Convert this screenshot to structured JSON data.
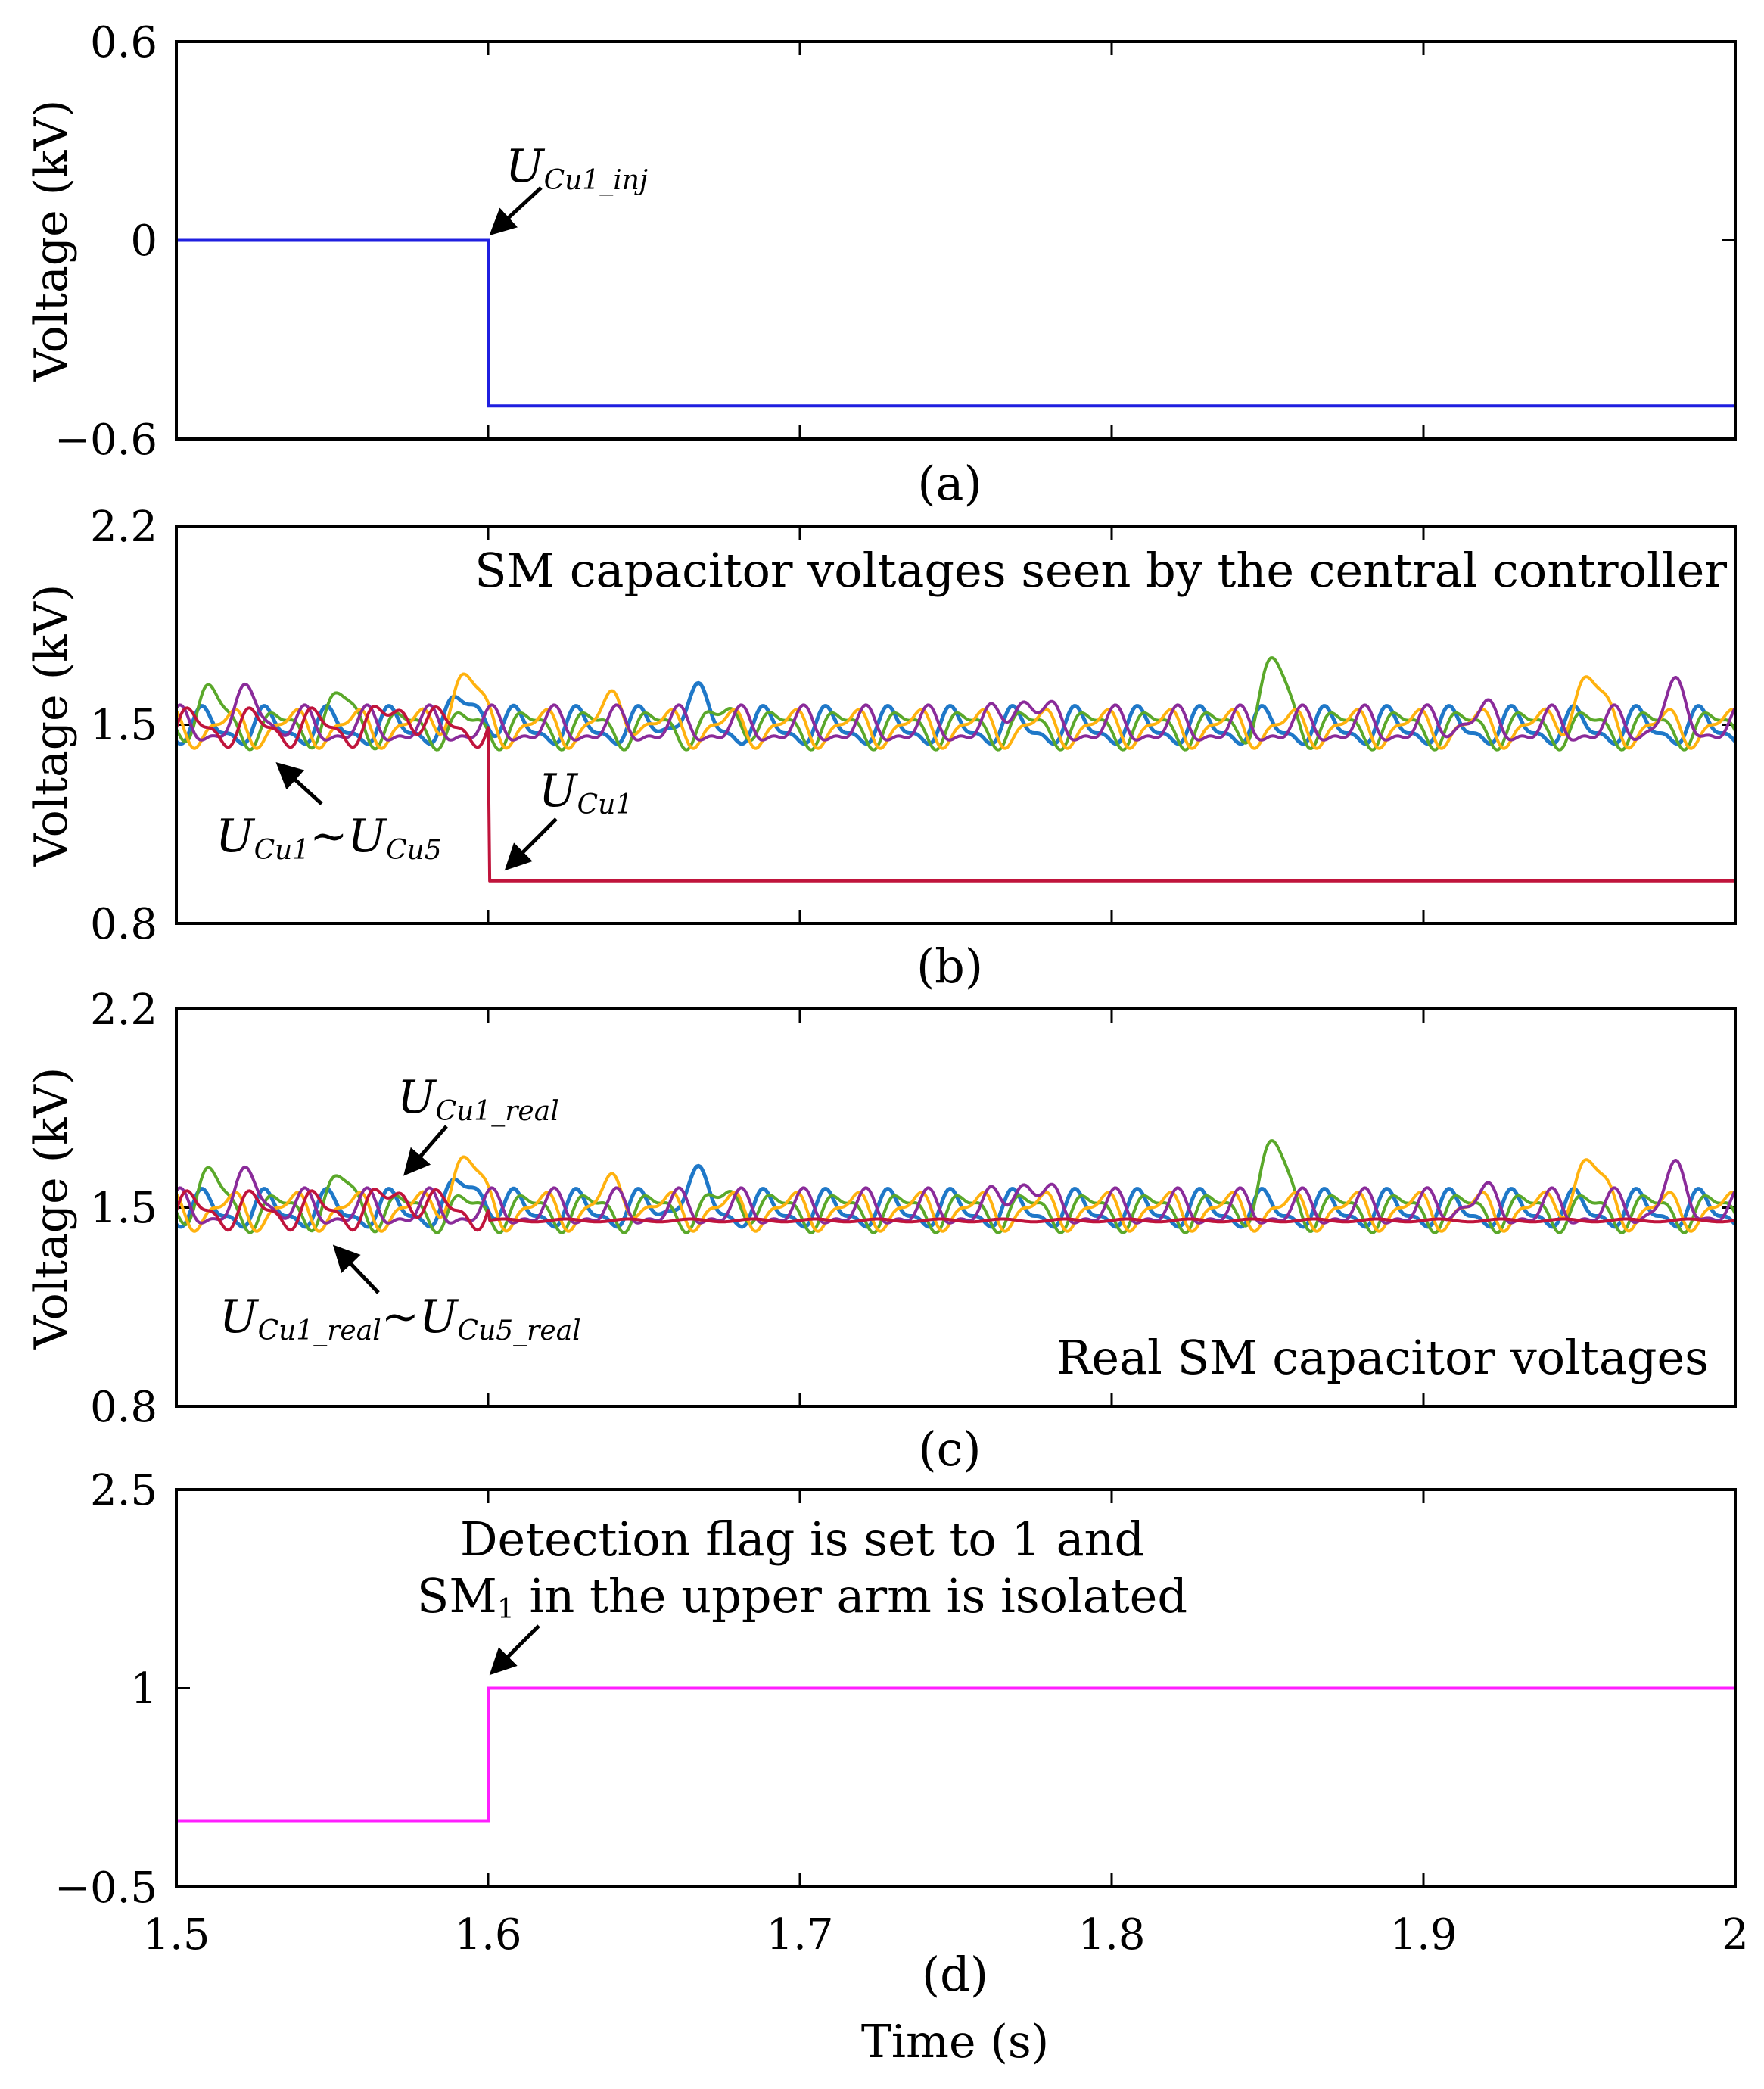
{
  "colors": {
    "blue": "#1f1fe0",
    "crimson": "#c0143c",
    "purple": "#8a2b9a",
    "orange": "#ffb20f",
    "green": "#5aa82a",
    "steel": "#1f78c8",
    "magenta": "#ff1fff",
    "arrow": "#000000"
  },
  "x_axis": {
    "label": "Time (s)",
    "ticks": [
      "1.5",
      "1.6",
      "1.7",
      "1.8",
      "1.9",
      "2"
    ],
    "range": [
      1.5,
      2
    ]
  },
  "chart_data": [
    {
      "type": "line",
      "caption": "(a)",
      "ylabel": "Voltage (kV)",
      "ylim": [
        -0.6,
        0.6
      ],
      "yticks": [
        "0.6",
        "0",
        "−0.6"
      ],
      "yticks_values": [
        0.6,
        0,
        -0.6
      ],
      "series": [
        {
          "name": "U_Cu1_inj",
          "x": [
            1.5,
            1.6,
            1.6,
            2.0
          ],
          "values": [
            0,
            0,
            -0.5,
            -0.5
          ]
        }
      ],
      "annotations": [
        {
          "text": "U",
          "sub": "Cu1_inj"
        }
      ]
    },
    {
      "type": "line",
      "caption": "(b)",
      "ylabel": "Voltage (kV)",
      "ylim": [
        0.8,
        2.2
      ],
      "yticks": [
        "2.2",
        "1.5",
        "0.8"
      ],
      "yticks_values": [
        2.2,
        1.5,
        0.8
      ],
      "title": "SM capacitor voltages seen by the central controller",
      "series_note": "Five SM capacitor voltages oscillating around 1.5 kV (approx. 1.40–1.72 kV); U_Cu1 drops to about 0.95 kV at 1.6 s",
      "annotations": [
        {
          "text": "U",
          "sub": "Cu1",
          "text2": "~U",
          "sub2": "Cu5"
        },
        {
          "text": "U",
          "sub": "Cu1"
        }
      ]
    },
    {
      "type": "line",
      "caption": "(c)",
      "ylabel": "Voltage (kV)",
      "ylim": [
        0.8,
        2.2
      ],
      "yticks": [
        "2.2",
        "1.5",
        "0.8"
      ],
      "yticks_values": [
        2.2,
        1.5,
        0.8
      ],
      "title": "Real SM capacitor voltages",
      "series_note": "Real voltages oscillate around 1.5 kV; U_Cu1_real settles near 1.45 kV after 1.6 s",
      "annotations": [
        {
          "text": "U",
          "sub": "Cu1_real"
        },
        {
          "text": "U",
          "sub": "Cu1_real",
          "text2": "~U",
          "sub2": "Cu5_real"
        }
      ]
    },
    {
      "type": "line",
      "caption": "(d)",
      "ylabel": "",
      "ylim": [
        -0.5,
        2.5
      ],
      "yticks": [
        "2.5",
        "1",
        "−0.5"
      ],
      "yticks_values": [
        2.5,
        1,
        -0.5
      ],
      "series": [
        {
          "name": "Detection flag",
          "x": [
            1.5,
            1.6,
            1.6,
            2.0
          ],
          "values": [
            0,
            0,
            1,
            1
          ]
        }
      ],
      "annotations": [
        {
          "line1": "Detection flag is set to 1 and",
          "line2_pre": "SM",
          "line2_sub": "1",
          "line2_post": " in the upper arm is isolated"
        }
      ]
    }
  ]
}
